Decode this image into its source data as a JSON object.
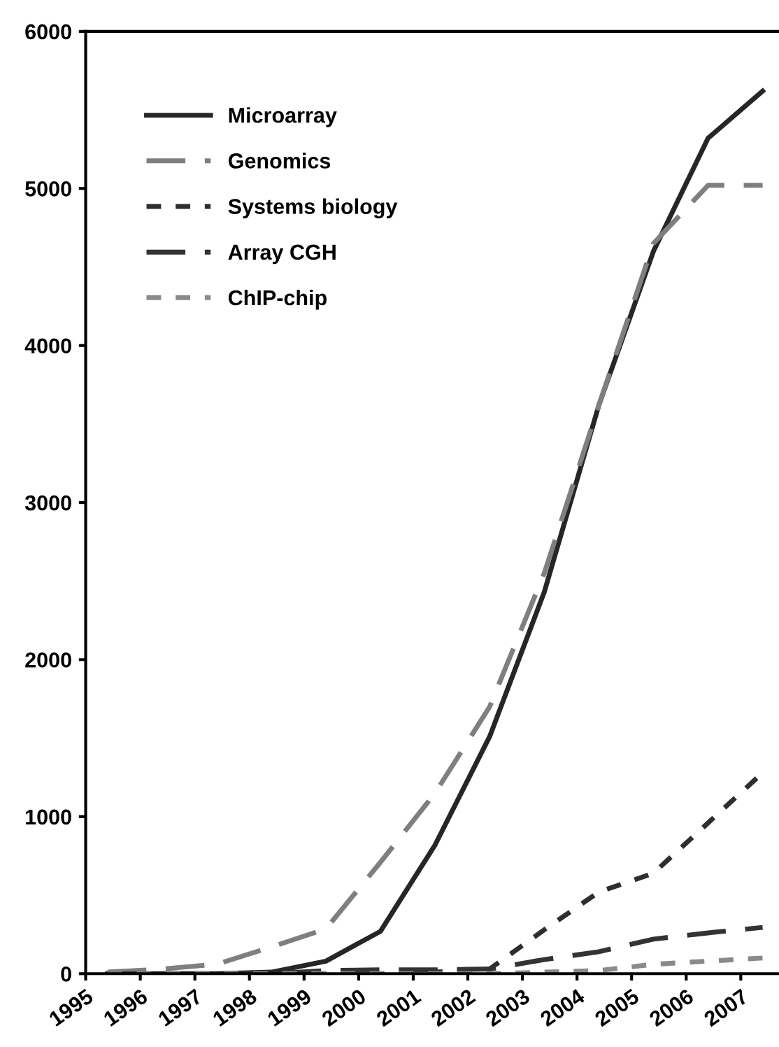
{
  "chart_data": {
    "type": "line",
    "x": [
      1995.4,
      1996.4,
      1997.4,
      1998.4,
      1999.4,
      2000.4,
      2001.4,
      2002.4,
      2003.4,
      2004.4,
      2005.4,
      2006.4,
      2007.4
    ],
    "series": [
      {
        "name": "Microarray",
        "color": "#262626",
        "line_style": "solid",
        "values": [
          0,
          0,
          0,
          10,
          80,
          270,
          820,
          1510,
          2430,
          3620,
          4600,
          5320,
          5620
        ]
      },
      {
        "name": "Genomics",
        "color": "#7f7f7f",
        "line_style": "dashed",
        "values": [
          10,
          30,
          60,
          170,
          285,
          710,
          1150,
          1700,
          2550,
          3620,
          4650,
          5020,
          5020
        ]
      },
      {
        "name": "Systems biology",
        "color": "#2e2e2e",
        "line_style": "dotted",
        "values": [
          0,
          0,
          0,
          0,
          0,
          0,
          10,
          30,
          280,
          520,
          640,
          960,
          1280
        ]
      },
      {
        "name": "Array CGH",
        "color": "#333333",
        "line_style": "dashed",
        "values": [
          0,
          0,
          0,
          0,
          20,
          25,
          25,
          30,
          90,
          140,
          220,
          260,
          295
        ]
      },
      {
        "name": "ChIP-chip",
        "color": "#8a8a8a",
        "line_style": "dotted",
        "values": [
          0,
          0,
          0,
          0,
          0,
          0,
          0,
          0,
          10,
          20,
          60,
          80,
          100
        ]
      }
    ],
    "xlim": [
      1995,
      2007.7
    ],
    "xticks": [
      1995,
      1996,
      1997,
      1998,
      1999,
      2000,
      2001,
      2002,
      2003,
      2004,
      2005,
      2006,
      2007
    ],
    "ylim": [
      0,
      6000
    ],
    "yticks": [
      0,
      1000,
      2000,
      3000,
      4000,
      5000,
      6000
    ],
    "legend": "top left",
    "grid": false
  }
}
